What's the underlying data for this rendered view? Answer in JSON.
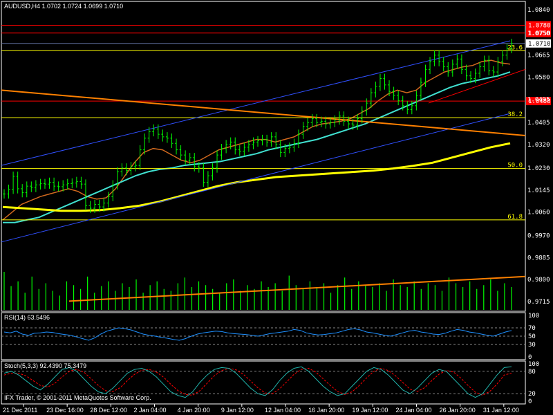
{
  "header": {
    "symbol_line": "AUDUSD,H4  1.0702 1.0724 1.0699 1.0710",
    "rsi_label": "RSI(14) 63.5496",
    "stoch_label": "Stoch(5,3,3) 92.4390 75.3479",
    "copyright": "IFX Trader, © 2001-2011 MetaQuotes Software Corp."
  },
  "colors": {
    "background": "#000000",
    "frame": "#ffffff",
    "candle": "#00ff00",
    "volume": "#00ff00",
    "channel": "#3050ff",
    "fib": "#ffff00",
    "resistance": "#ff0000",
    "trendline_orange": "#ff8000",
    "ma_fast": "#d2691e",
    "ma_mid": "#40e0d0",
    "ma_slow": "#ffff00",
    "rsi": "#1e90ff",
    "stoch_main": "#20b2aa",
    "stoch_signal": "#ff0000",
    "price_tag_red": "#ff0000",
    "price_tag_current": "#ffffff"
  },
  "chart_data": [
    {
      "type": "candlestick",
      "panel": "main",
      "symbol": "AUDUSD",
      "timeframe": "H4",
      "last_bar": {
        "open": 1.0702,
        "high": 1.0724,
        "low": 1.0699,
        "close": 1.071
      },
      "ylim": [
        0.9678,
        1.0872
      ],
      "y_ticks": [
        "1.0840",
        "1.0750",
        "1.0665",
        "1.0580",
        "1.0495",
        "1.0405",
        "1.0320",
        "1.0230",
        "1.0145",
        "1.0060",
        "0.9970",
        "0.9885",
        "0.9800",
        "0.9715"
      ],
      "price_tags": [
        {
          "label": "1.0780",
          "value": 1.078,
          "kind": "resistance"
        },
        {
          "label": "1.0750",
          "value": 1.075,
          "kind": "resistance"
        },
        {
          "label": "1.0710",
          "value": 1.071,
          "kind": "current"
        },
        {
          "label": "1.0488",
          "value": 1.0488,
          "kind": "resistance"
        }
      ],
      "fib_levels": [
        {
          "label": "23.6",
          "value": 1.0682
        },
        {
          "label": "38.2",
          "value": 1.0424
        },
        {
          "label": "50.0",
          "value": 1.0228
        },
        {
          "label": "61.8",
          "value": 1.003
        }
      ],
      "x_labels": [
        "21 Dec 2011",
        "23 Dec 16:00",
        "28 Dec 12:00",
        "2 Jan 04:00",
        "4 Jan 20:00",
        "9 Jan 12:00",
        "12 Jan 04:00",
        "16 Jan 20:00",
        "19 Jan 12:00",
        "24 Jan 04:00",
        "26 Jan 20:00",
        "31 Jan 12:00"
      ],
      "closes": [
        1.013,
        1.0148,
        1.0198,
        1.015,
        1.0135,
        1.016,
        1.0155,
        1.0165,
        1.017,
        1.0168,
        1.0175,
        1.016,
        1.0158,
        1.0165,
        1.017,
        1.0172,
        1.0178,
        1.0168,
        1.0085,
        1.0075,
        1.009,
        1.008,
        1.0095,
        1.012,
        1.0165,
        1.0215,
        1.023,
        1.022,
        1.0235,
        1.024,
        1.03,
        1.0345,
        1.037,
        1.038,
        1.036,
        1.035,
        1.0345,
        1.0325,
        1.03,
        1.028,
        1.026,
        1.027,
        1.0235,
        1.023,
        1.0175,
        1.02,
        1.023,
        1.028,
        1.0305,
        1.032,
        1.033,
        1.03,
        1.0295,
        1.031,
        1.032,
        1.033,
        1.0335,
        1.034,
        1.033,
        1.035,
        1.032,
        1.029,
        1.0305,
        1.031,
        1.0325,
        1.036,
        1.039,
        1.0405,
        1.042,
        1.0405,
        1.041,
        1.04,
        1.0405,
        1.0415,
        1.043,
        1.041,
        1.04,
        1.0395,
        1.042,
        1.045,
        1.048,
        1.052,
        1.0545,
        1.0575,
        1.055,
        1.0525,
        1.051,
        1.049,
        1.047,
        1.0455,
        1.047,
        1.051,
        1.056,
        1.061,
        1.064,
        1.0665,
        1.064,
        1.062,
        1.06,
        1.063,
        1.065,
        1.061,
        1.0585,
        1.0575,
        1.0595,
        1.062,
        1.0645,
        1.0605,
        1.06,
        1.064,
        1.0665,
        1.069,
        1.071
      ],
      "moving_averages": [
        {
          "name": "fast",
          "values": [
            1.003,
            1.006,
            1.009,
            1.0105,
            1.012,
            1.013,
            1.014,
            1.015,
            1.014,
            1.012,
            1.011,
            1.0115,
            1.015,
            1.02,
            1.025,
            1.029,
            1.0305,
            1.03,
            1.028,
            1.026,
            1.025,
            1.026,
            1.028,
            1.03,
            1.031,
            1.032,
            1.033,
            1.034,
            1.034,
            1.033,
            1.034,
            1.035,
            1.037,
            1.039,
            1.04,
            1.0405,
            1.041,
            1.042,
            1.044,
            1.046,
            1.049,
            1.0515,
            1.053,
            1.052,
            1.053,
            1.056,
            1.058,
            1.06,
            1.061,
            1.062,
            1.0625,
            1.064,
            1.0645,
            1.0635,
            1.063
          ]
        },
        {
          "name": "mid",
          "values": [
            1.002,
            1.002,
            1.003,
            1.004,
            1.006,
            1.008,
            1.01,
            1.012,
            1.014,
            1.016,
            1.018,
            1.02,
            1.0215,
            1.0225,
            1.023,
            1.024,
            1.0245,
            1.025,
            1.0255,
            1.0265,
            1.0275,
            1.0285,
            1.03,
            1.031,
            1.032,
            1.033,
            1.034,
            1.0355,
            1.037,
            1.0385,
            1.04,
            1.042,
            1.044,
            1.046,
            1.048,
            1.05,
            1.052,
            1.054,
            1.0555,
            1.0565,
            1.0575,
            1.0585,
            1.06
          ]
        },
        {
          "name": "slow",
          "values": [
            1.008,
            1.0075,
            1.007,
            1.0065,
            1.0065,
            1.0068,
            1.0075,
            1.0085,
            1.01,
            1.012,
            1.014,
            1.016,
            1.0175,
            1.0185,
            1.0195,
            1.02,
            1.0205,
            1.021,
            1.0215,
            1.022,
            1.0228,
            1.0238,
            1.025,
            1.027,
            1.029,
            1.031,
            1.0325
          ]
        }
      ]
    },
    {
      "type": "line",
      "panel": "rsi",
      "name": "RSI(14)",
      "last_value": 63.5496,
      "ylim": [
        0,
        100
      ],
      "levels": [
        30,
        50,
        70
      ],
      "y_ticks": [
        "100",
        "70",
        "50",
        "30",
        "0"
      ],
      "values": [
        60,
        58,
        62,
        55,
        52,
        57,
        58,
        60,
        59,
        56,
        54,
        52,
        48,
        44,
        40,
        46,
        55,
        62,
        66,
        70,
        68,
        65,
        60,
        55,
        52,
        50,
        47,
        45,
        42,
        40,
        44,
        50,
        55,
        58,
        60,
        62,
        61,
        58,
        56,
        55,
        54,
        52,
        50,
        53,
        56,
        58,
        60,
        62,
        66,
        64,
        58,
        55,
        53,
        54,
        56,
        58,
        62,
        66,
        68,
        65,
        60,
        58,
        55,
        52,
        50,
        54,
        58,
        62,
        64,
        60,
        58,
        55,
        54,
        57,
        62,
        66,
        64,
        60,
        58,
        55,
        52,
        50,
        55,
        60,
        63.5
      ]
    },
    {
      "type": "line",
      "panel": "stoch",
      "name": "Stoch(5,3,3)",
      "main_last": 92.439,
      "signal_last": 75.3479,
      "ylim": [
        0,
        100
      ],
      "levels": [
        20,
        80
      ],
      "y_ticks": [
        "100",
        "80",
        "20",
        "0"
      ],
      "main": [
        75,
        80,
        70,
        55,
        40,
        30,
        45,
        65,
        85,
        90,
        80,
        60,
        40,
        25,
        20,
        35,
        55,
        75,
        85,
        88,
        80,
        65,
        45,
        25,
        15,
        10,
        25,
        50,
        70,
        85,
        90,
        88,
        75,
        55,
        35,
        20,
        15,
        30,
        55,
        75,
        88,
        92,
        80,
        60,
        40,
        25,
        15,
        20,
        40,
        60,
        80,
        90,
        85,
        70,
        50,
        30,
        20,
        35,
        55,
        75,
        85,
        80,
        60,
        40,
        20,
        10,
        20,
        45,
        70,
        90,
        92
      ],
      "signal": [
        70,
        75,
        75,
        68,
        55,
        42,
        38,
        48,
        65,
        80,
        85,
        78,
        60,
        42,
        28,
        26,
        36,
        55,
        72,
        83,
        85,
        78,
        64,
        45,
        28,
        18,
        16,
        28,
        48,
        68,
        82,
        88,
        84,
        72,
        54,
        36,
        22,
        20,
        33,
        52,
        72,
        85,
        88,
        78,
        60,
        42,
        26,
        18,
        25,
        42,
        62,
        80,
        88,
        82,
        68,
        50,
        32,
        26,
        36,
        55,
        72,
        82,
        78,
        62,
        42,
        24,
        16,
        26,
        46,
        70,
        75
      ]
    },
    {
      "type": "bar",
      "panel": "volume",
      "name": "volume",
      "values": [
        40,
        25,
        30,
        18,
        35,
        22,
        28,
        20,
        15,
        30,
        26,
        22,
        35,
        18,
        25,
        30,
        20,
        28,
        24,
        32,
        18,
        26,
        30,
        22,
        20,
        28,
        34,
        24,
        30,
        26,
        22,
        18,
        28,
        32,
        20,
        26,
        22,
        30,
        24,
        28,
        20,
        36,
        26,
        22,
        30,
        24,
        28,
        18,
        26,
        34,
        22,
        30,
        26,
        24,
        28,
        20,
        32,
        26,
        24,
        30,
        22,
        28,
        26,
        20,
        34,
        28,
        24,
        30,
        22,
        26,
        32,
        20,
        28,
        24
      ]
    }
  ]
}
